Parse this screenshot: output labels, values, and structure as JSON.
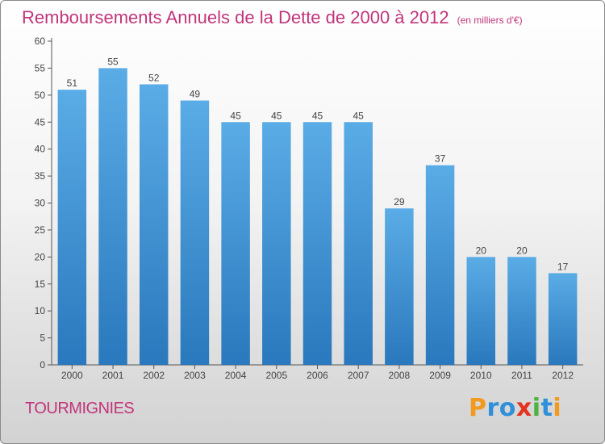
{
  "chart_data": {
    "type": "bar",
    "title": "Remboursements Annuels de la Dette de 2000 à 2012",
    "subtitle": "(en milliers d'€)",
    "categories": [
      "2000",
      "2001",
      "2002",
      "2003",
      "2004",
      "2005",
      "2006",
      "2007",
      "2008",
      "2009",
      "2010",
      "2011",
      "2012"
    ],
    "values": [
      51,
      55,
      52,
      49,
      45,
      45,
      45,
      45,
      29,
      37,
      20,
      20,
      17
    ],
    "ylim": [
      0,
      60
    ],
    "yticks": [
      0,
      5,
      10,
      15,
      20,
      25,
      30,
      35,
      40,
      45,
      50,
      55,
      60
    ],
    "xlabel": "",
    "ylabel": "",
    "grid": false,
    "bar_color_top": "#5aace6",
    "bar_color_bottom": "#2a78bd"
  },
  "location": "TOURMIGNIES",
  "brand": {
    "letters": [
      "P",
      "r",
      "o",
      "x",
      "i",
      "t",
      "i"
    ],
    "colors": [
      "#f29a1d",
      "#2f8fd8",
      "#2f8fd8",
      "#e2341e",
      "#4bb33e",
      "#2f8fd8",
      "#f29a1d"
    ]
  }
}
